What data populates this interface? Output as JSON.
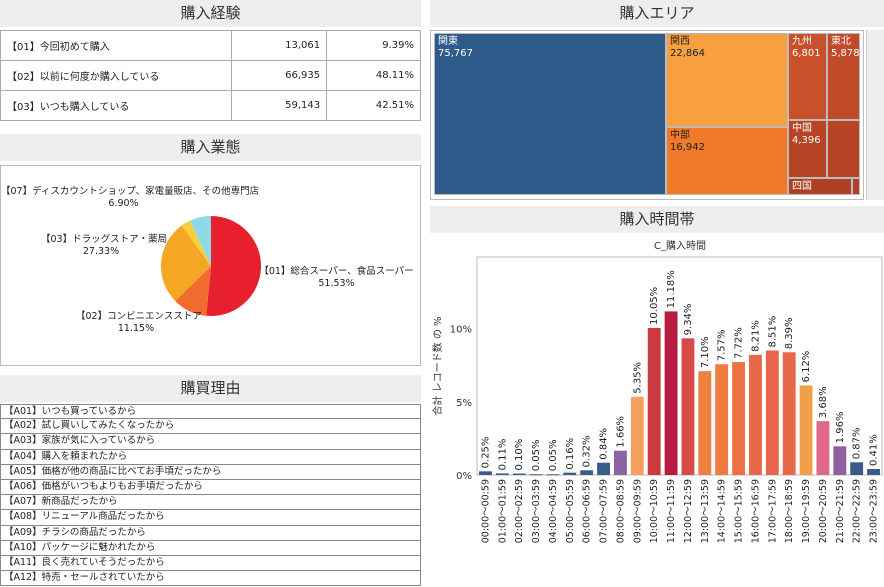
{
  "experience": {
    "title": "購入経験",
    "rows": [
      {
        "label": "【01】今回初めて購入",
        "count": "13,061",
        "pct": "9.39%"
      },
      {
        "label": "【02】以前に何度か購入している",
        "count": "66,935",
        "pct": "48.11%"
      },
      {
        "label": "【03】いつも購入している",
        "count": "59,143",
        "pct": "42.51%"
      }
    ]
  },
  "format": {
    "title": "購入業態",
    "chart_data": {
      "type": "pie",
      "slices": [
        {
          "label": "【01】総合スーパー、食品スーパー",
          "value": 51.53,
          "pct": "51.53%",
          "color": "#e8202e"
        },
        {
          "label": "【02】コンビニエンスストア",
          "value": 11.15,
          "pct": "11.15%",
          "color": "#f26b2e"
        },
        {
          "label": "【03】ドラッグストア・薬局",
          "value": 27.33,
          "pct": "27.33%",
          "color": "#f5a623"
        },
        {
          "label": "",
          "value": null,
          "pct": "",
          "color": "#f5d03a"
        },
        {
          "label": "【07】ディスカウントショップ、家電量販店、その他専門店",
          "value": 6.9,
          "pct": "6.90%",
          "color": "#8fd8e8"
        }
      ]
    }
  },
  "reasons": {
    "title": "購買理由",
    "items": [
      "【A01】いつも買っているから",
      "【A02】試し買いしてみたくなったから",
      "【A03】家族が気に入っているから",
      "【A04】購入を頼まれたから",
      "【A05】価格が他の商品に比べてお手頃だったから",
      "【A06】価格がいつもよりもお手頃だったから",
      "【A07】新商品だったから",
      "【A08】リニューアル商品だったから",
      "【A09】チラシの商品だったから",
      "【A10】パッケージに魅かれたから",
      "【A11】良く売れていそうだったから",
      "【A12】特売・セールされていたから"
    ]
  },
  "area": {
    "title": "購入エリア",
    "chart_data": {
      "type": "treemap",
      "cells": [
        {
          "name": "関東",
          "value": "75,767",
          "color": "#2e5b8a"
        },
        {
          "name": "関西",
          "value": "22,864",
          "color": "#f8a040"
        },
        {
          "name": "中部",
          "value": "16,942",
          "color": "#ee7a2a"
        },
        {
          "name": "九州",
          "value": "6,801",
          "color": "#c8502a"
        },
        {
          "name": "東北",
          "value": "5,878",
          "color": "#c04a28"
        },
        {
          "name": "中国",
          "value": "4,396",
          "color": "#b84426"
        },
        {
          "name": "",
          "value": "",
          "color": "#b84426"
        },
        {
          "name": "四国",
          "value": "",
          "color": "#b04024"
        },
        {
          "name": "",
          "value": "",
          "color": "#b04024"
        }
      ]
    }
  },
  "time": {
    "title": "購入時間帯",
    "chart_data": {
      "type": "bar",
      "title": "C_購入時間",
      "ylabel": "合計 レコード数 の %",
      "yticks": [
        "0%",
        "5%",
        "10%"
      ],
      "ylim": [
        0,
        14.9
      ],
      "categories": [
        "00:00～00:59",
        "01:00～01:59",
        "02:00～02:59",
        "03:00～03:59",
        "04:00～04:59",
        "05:00～05:59",
        "06:00～06:59",
        "07:00～07:59",
        "08:00～08:59",
        "09:00～09:59",
        "10:00～10:59",
        "11:00～11:59",
        "12:00～12:59",
        "13:00～13:59",
        "14:00～14:59",
        "15:00～15:59",
        "16:00～16:59",
        "17:00～17:59",
        "18:00～18:59",
        "19:00～19:59",
        "20:00～20:59",
        "21:00～21:59",
        "22:00～22:59",
        "23:00～23:59"
      ],
      "values": [
        0.25,
        0.11,
        0.1,
        0.05,
        0.05,
        0.16,
        0.32,
        0.84,
        1.66,
        5.35,
        10.05,
        11.18,
        9.34,
        7.1,
        7.57,
        7.72,
        8.21,
        8.51,
        8.39,
        6.12,
        3.68,
        1.96,
        0.87,
        0.41
      ],
      "labels": [
        "0.25%",
        "0.11%",
        "0.10%",
        "0.05%",
        "0.05%",
        "0.16%",
        "0.32%",
        "0.84%",
        "1.66%",
        "5.35%",
        "10.05%",
        "11.18%",
        "9.34%",
        "7.10%",
        "7.57%",
        "7.72%",
        "8.21%",
        "8.51%",
        "8.39%",
        "6.12%",
        "3.68%",
        "1.96%",
        "0.87%",
        "0.41%"
      ],
      "colors": [
        "#3d5a8c",
        "#3d5a8c",
        "#3d5a8c",
        "#3d5a8c",
        "#3d5a8c",
        "#3d5a8c",
        "#3d5a8c",
        "#3d5a8c",
        "#8a63a4",
        "#f5a060",
        "#cc3a40",
        "#b81a40",
        "#d84a48",
        "#ee8040",
        "#ee7a40",
        "#ec7244",
        "#e8684a",
        "#e8644a",
        "#e8684a",
        "#f0a048",
        "#e0668a",
        "#9060a0",
        "#3d5a8c",
        "#3d5a8c"
      ]
    }
  }
}
